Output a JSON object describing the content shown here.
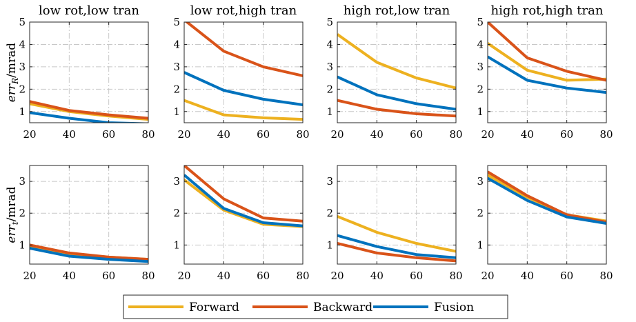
{
  "chart_data": [
    {
      "type": "line",
      "title": "low rot,low tran",
      "ylabel": "err_R/mrad",
      "ylim": [
        0.5,
        5
      ],
      "yticks": [
        1,
        2,
        3,
        4,
        5
      ],
      "x": [
        20,
        40,
        60,
        80
      ],
      "xticks": [
        20,
        40,
        60,
        80
      ],
      "series": [
        {
          "name": "Forward",
          "values": [
            1.35,
            1.0,
            0.8,
            0.65
          ]
        },
        {
          "name": "Backward",
          "values": [
            1.45,
            1.05,
            0.85,
            0.7
          ]
        },
        {
          "name": "Fusion",
          "values": [
            0.95,
            0.7,
            0.5,
            0.45
          ]
        }
      ]
    },
    {
      "type": "line",
      "title": "low rot,high tran",
      "ylabel": "",
      "ylim": [
        0.5,
        5
      ],
      "yticks": [
        1,
        2,
        3,
        4,
        5
      ],
      "x": [
        20,
        40,
        60,
        80
      ],
      "xticks": [
        20,
        40,
        60,
        80
      ],
      "series": [
        {
          "name": "Forward",
          "values": [
            1.5,
            0.85,
            0.72,
            0.65
          ]
        },
        {
          "name": "Backward",
          "values": [
            5.1,
            3.7,
            3.0,
            2.6
          ]
        },
        {
          "name": "Fusion",
          "values": [
            2.75,
            1.95,
            1.55,
            1.3
          ]
        }
      ]
    },
    {
      "type": "line",
      "title": "high rot,low tran",
      "ylabel": "",
      "ylim": [
        0.5,
        5
      ],
      "yticks": [
        1,
        2,
        3,
        4,
        5
      ],
      "x": [
        20,
        40,
        60,
        80
      ],
      "xticks": [
        20,
        40,
        60,
        80
      ],
      "series": [
        {
          "name": "Forward",
          "values": [
            4.45,
            3.2,
            2.5,
            2.05
          ]
        },
        {
          "name": "Backward",
          "values": [
            1.5,
            1.1,
            0.9,
            0.8
          ]
        },
        {
          "name": "Fusion",
          "values": [
            2.55,
            1.75,
            1.35,
            1.1
          ]
        }
      ]
    },
    {
      "type": "line",
      "title": "high rot,high tran",
      "ylabel": "",
      "ylim": [
        0.5,
        5
      ],
      "yticks": [
        1,
        2,
        3,
        4,
        5
      ],
      "x": [
        20,
        40,
        60,
        80
      ],
      "xticks": [
        20,
        40,
        60,
        80
      ],
      "series": [
        {
          "name": "Forward",
          "values": [
            4.05,
            2.85,
            2.4,
            2.45
          ]
        },
        {
          "name": "Backward",
          "values": [
            5.0,
            3.4,
            2.8,
            2.4
          ]
        },
        {
          "name": "Fusion",
          "values": [
            3.45,
            2.4,
            2.05,
            1.85
          ]
        }
      ]
    },
    {
      "type": "line",
      "title": "",
      "ylabel": "err_t/mrad",
      "ylim": [
        0.4,
        3.5
      ],
      "yticks": [
        1,
        2,
        3
      ],
      "x": [
        20,
        40,
        60,
        80
      ],
      "xticks": [
        20,
        40,
        60,
        80
      ],
      "series": [
        {
          "name": "Forward",
          "values": [
            0.95,
            0.72,
            0.62,
            0.55
          ]
        },
        {
          "name": "Backward",
          "values": [
            1.0,
            0.75,
            0.62,
            0.55
          ]
        },
        {
          "name": "Fusion",
          "values": [
            0.9,
            0.65,
            0.55,
            0.48
          ]
        }
      ]
    },
    {
      "type": "line",
      "title": "",
      "ylabel": "",
      "ylim": [
        0.4,
        3.5
      ],
      "yticks": [
        1,
        2,
        3
      ],
      "x": [
        20,
        40,
        60,
        80
      ],
      "xticks": [
        20,
        40,
        60,
        80
      ],
      "series": [
        {
          "name": "Forward",
          "values": [
            3.05,
            2.1,
            1.65,
            1.58
          ]
        },
        {
          "name": "Backward",
          "values": [
            3.5,
            2.45,
            1.85,
            1.75
          ]
        },
        {
          "name": "Fusion",
          "values": [
            3.2,
            2.15,
            1.7,
            1.6
          ]
        }
      ]
    },
    {
      "type": "line",
      "title": "",
      "ylabel": "",
      "ylim": [
        0.4,
        3.5
      ],
      "yticks": [
        1,
        2,
        3
      ],
      "x": [
        20,
        40,
        60,
        80
      ],
      "xticks": [
        20,
        40,
        60,
        80
      ],
      "series": [
        {
          "name": "Forward",
          "values": [
            1.9,
            1.4,
            1.05,
            0.8
          ]
        },
        {
          "name": "Backward",
          "values": [
            1.05,
            0.75,
            0.6,
            0.5
          ]
        },
        {
          "name": "Fusion",
          "values": [
            1.3,
            0.95,
            0.7,
            0.6
          ]
        }
      ]
    },
    {
      "type": "line",
      "title": "",
      "ylabel": "",
      "ylim": [
        0.4,
        3.5
      ],
      "yticks": [
        1,
        2,
        3
      ],
      "x": [
        20,
        40,
        60,
        80
      ],
      "xticks": [
        20,
        40,
        60,
        80
      ],
      "series": [
        {
          "name": "Forward",
          "values": [
            3.2,
            2.5,
            1.95,
            1.75
          ]
        },
        {
          "name": "Backward",
          "values": [
            3.3,
            2.55,
            1.95,
            1.72
          ]
        },
        {
          "name": "Fusion",
          "values": [
            3.1,
            2.4,
            1.88,
            1.68
          ]
        }
      ]
    }
  ],
  "legend": {
    "items": [
      {
        "name": "Forward",
        "color": "#EDB120"
      },
      {
        "name": "Backward",
        "color": "#D95319"
      },
      {
        "name": "Fusion",
        "color": "#0072BD"
      }
    ]
  },
  "colors": {
    "Forward": "#EDB120",
    "Backward": "#D95319",
    "Fusion": "#0072BD"
  }
}
